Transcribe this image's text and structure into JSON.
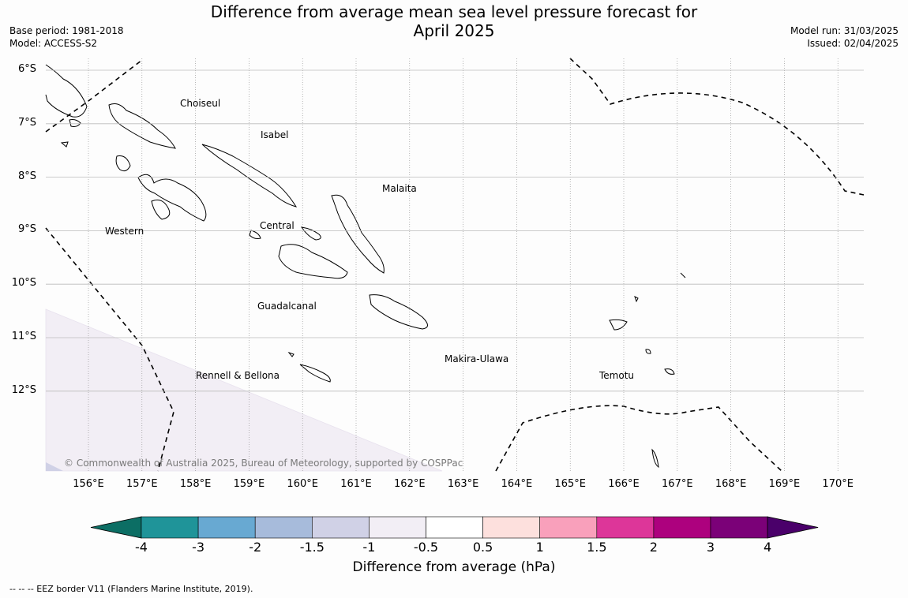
{
  "header": {
    "title_line1": "Difference from average mean sea level pressure forecast for",
    "title_line2": "April 2025",
    "base_period": "Base period: 1981-2018",
    "model": "Model: ACCESS-S2",
    "model_run": "Model run: 31/03/2025",
    "issued": "Issued: 02/04/2025"
  },
  "map": {
    "lat_labels": [
      "6°S",
      "7°S",
      "8°S",
      "9°S",
      "10°S",
      "11°S",
      "12°S"
    ],
    "lon_labels": [
      "156°E",
      "157°E",
      "158°E",
      "159°E",
      "160°E",
      "161°E",
      "162°E",
      "163°E",
      "164°E",
      "165°E",
      "166°E",
      "167°E",
      "168°E",
      "169°E",
      "170°E"
    ],
    "regions": [
      "Choiseul",
      "Isabel",
      "Malaita",
      "Western",
      "Central",
      "Guadalcanal",
      "Rennell & Bellona",
      "Makira-Ulawa",
      "Temotu"
    ],
    "copyright": "© Commonwealth of Australia 2025, Bureau of Meteorology, supported by COSPPac",
    "anomaly_fill_color": "#f2eef5",
    "anomaly_fill_band": "-1 to -0.5"
  },
  "colorbar": {
    "ticks": [
      "-4",
      "-3",
      "-2",
      "-1.5",
      "-1",
      "-0.5",
      "0.5",
      "1",
      "1.5",
      "2",
      "3",
      "4"
    ],
    "colors": [
      "#0c6e64",
      "#1f9499",
      "#68a9d2",
      "#a7bbdb",
      "#d0d1e6",
      "#f2eef5",
      "#ffffff",
      "#fde0dd",
      "#f9a0bb",
      "#dd3699",
      "#ad017e",
      "#7b0178",
      "#4a006a"
    ],
    "label": "Difference from average (hPa)"
  },
  "legend_note": "--  --  -- EEZ border V11 (Flanders Marine Institute, 2019)."
}
